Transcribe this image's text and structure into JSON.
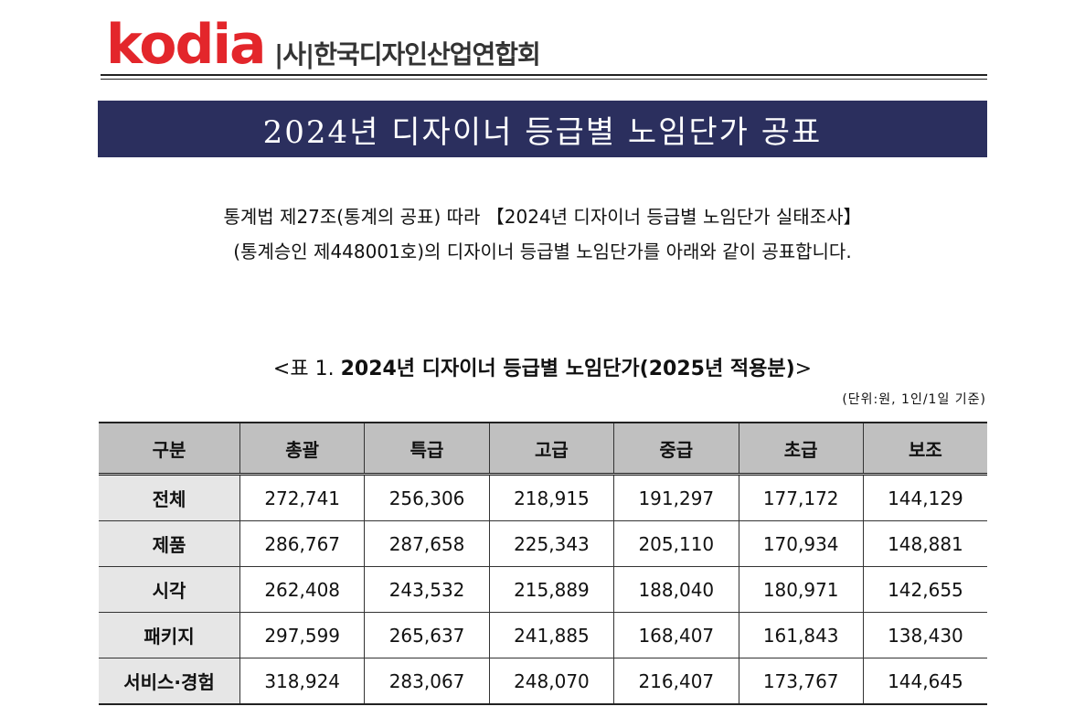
{
  "header": {
    "logo": "kodia",
    "org": "|사|한국디자인산업연합회"
  },
  "banner": {
    "title": "2024년 디자이너 등급별 노임단가 공표"
  },
  "intro": {
    "lines": [
      "통계법 제27조(통계의 공표) 따라 【2024년 디자이너 등급별 노임단가 실태조사】",
      "(통계승인 제448001호)의 디자이너 등급별 노임단가를 아래와 같이 공표합니다."
    ]
  },
  "table": {
    "caption": {
      "prefix": "<표 1.",
      "title": "2024년 디자이너 등급별 노임단가(2025년 적용분)",
      "suffix": ">"
    },
    "unit": "(단위:원, 1인/1일 기준)",
    "columns": [
      "구분",
      "총괄",
      "특급",
      "고급",
      "중급",
      "초급",
      "보조"
    ],
    "rows": [
      [
        "전체",
        "272,741",
        "256,306",
        "218,915",
        "191,297",
        "177,172",
        "144,129"
      ],
      [
        "제품",
        "286,767",
        "287,658",
        "225,343",
        "205,110",
        "170,934",
        "148,881"
      ],
      [
        "시각",
        "262,408",
        "243,532",
        "215,889",
        "188,040",
        "180,971",
        "142,655"
      ],
      [
        "패키지",
        "297,599",
        "265,637",
        "241,885",
        "168,407",
        "161,843",
        "138,430"
      ],
      [
        "서비스·경험",
        "318,924",
        "283,067",
        "248,070",
        "216,407",
        "173,767",
        "144,645"
      ]
    ]
  }
}
